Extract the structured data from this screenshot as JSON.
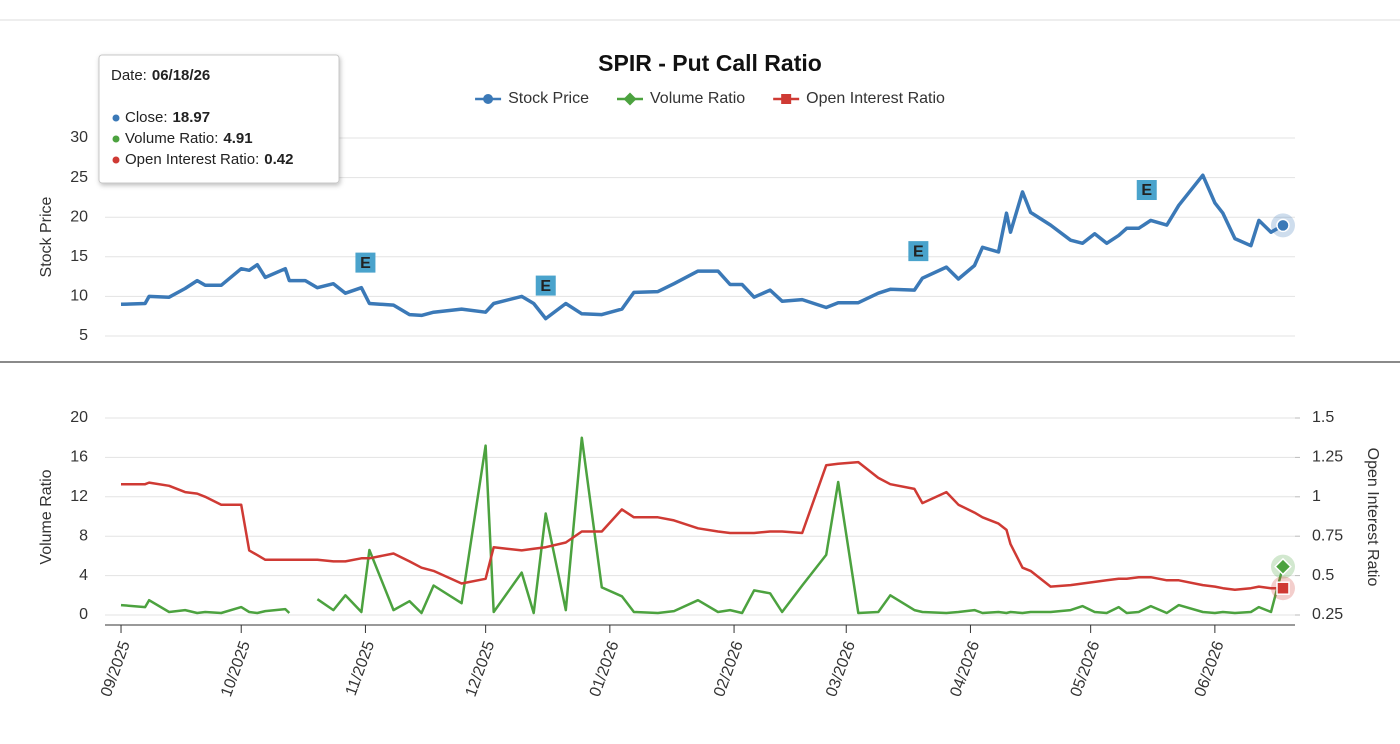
{
  "chart_data": {
    "type": "line",
    "title": "SPIR - Put Call Ratio",
    "ylabel": "Stock Price",
    "y2label": "Volume Ratio",
    "y3label": "Open Interest Ratio",
    "xlim": [
      "08/28/25",
      "06/21/26"
    ],
    "xticks": [
      {
        "value": "09/01/25",
        "label": "09/2025"
      },
      {
        "value": "10/01/25",
        "label": "10/2025"
      },
      {
        "value": "11/01/25",
        "label": "11/2025"
      },
      {
        "value": "12/01/25",
        "label": "12/2025"
      },
      {
        "value": "01/01/26",
        "label": "01/2026"
      },
      {
        "value": "02/01/26",
        "label": "02/2026"
      },
      {
        "value": "03/01/26",
        "label": "03/2026"
      },
      {
        "value": "04/01/26",
        "label": "04/2026"
      },
      {
        "value": "05/01/26",
        "label": "05/2026"
      },
      {
        "value": "06/01/26",
        "label": "06/2026"
      }
    ],
    "ylim": [
      5,
      30
    ],
    "yticks": [
      5,
      10,
      15,
      20,
      25,
      30
    ],
    "y2lim": [
      0,
      20
    ],
    "y2ticks": [
      0,
      4,
      8,
      12,
      16,
      20
    ],
    "y3lim": [
      0.25,
      1.5
    ],
    "y3ticks": [
      0.25,
      0.5,
      0.75,
      1,
      1.25,
      1.5
    ],
    "grid": true,
    "x": [
      "09/01/25",
      "09/07/25",
      "09/08/25",
      "09/13/25",
      "09/17/25",
      "09/20/25",
      "09/22/25",
      "09/26/25",
      "10/01/25",
      "10/03/25",
      "10/05/25",
      "10/07/25",
      "10/12/25",
      "10/13/25",
      "10/17/25",
      "10/20/25",
      "10/24/25",
      "10/27/25",
      "10/31/25",
      "11/02/25",
      "11/08/25",
      "11/12/25",
      "11/15/25",
      "11/18/25",
      "11/25/25",
      "12/01/25",
      "12/03/25",
      "12/10/25",
      "12/13/25",
      "12/16/25",
      "12/21/25",
      "12/25/25",
      "12/30/25",
      "01/04/26",
      "01/07/26",
      "01/13/26",
      "01/17/26",
      "01/23/26",
      "01/28/26",
      "01/31/26",
      "02/03/26",
      "02/06/26",
      "02/10/26",
      "02/13/26",
      "02/18/26",
      "02/24/26",
      "02/27/26",
      "03/04/26",
      "03/09/26",
      "03/12/26",
      "03/18/26",
      "03/20/26",
      "03/26/26",
      "03/29/26",
      "04/02/26",
      "04/04/26",
      "04/08/26",
      "04/10/26",
      "04/11/26",
      "04/14/26",
      "04/16/26",
      "04/21/26",
      "04/26/26",
      "04/29/26",
      "05/02/26",
      "05/05/26",
      "05/08/26",
      "05/10/26",
      "05/13/26",
      "05/16/26",
      "05/20/26",
      "05/23/26",
      "05/29/26",
      "06/01/26",
      "06/03/26",
      "06/06/26",
      "06/10/26",
      "06/12/26",
      "06/15/26",
      "06/18/26"
    ],
    "series": [
      {
        "name": "Stock Price",
        "color": "#3b79b7",
        "marker": "circle",
        "axis": "y",
        "values": [
          9.0,
          9.1,
          10.0,
          9.9,
          11.0,
          12.0,
          11.4,
          11.4,
          13.5,
          13.3,
          14.0,
          12.4,
          13.5,
          12.0,
          12.0,
          11.1,
          11.6,
          10.4,
          11.1,
          9.1,
          8.9,
          7.7,
          7.6,
          8.0,
          8.4,
          8.0,
          9.1,
          10.0,
          9.1,
          7.2,
          9.1,
          7.8,
          7.7,
          8.4,
          10.5,
          10.6,
          11.6,
          13.2,
          13.2,
          11.5,
          11.5,
          9.9,
          10.8,
          9.4,
          9.6,
          8.6,
          9.2,
          9.2,
          10.4,
          10.9,
          10.8,
          12.3,
          13.7,
          12.2,
          13.9,
          16.2,
          15.6,
          20.5,
          18.1,
          23.2,
          20.6,
          19.0,
          17.1,
          16.7,
          17.9,
          16.7,
          17.7,
          18.6,
          18.6,
          19.6,
          19.0,
          21.5,
          25.3,
          21.8,
          20.5,
          17.3,
          16.4,
          19.6,
          18.1,
          18.97
        ]
      },
      {
        "name": "Volume Ratio",
        "color": "#4ca23f",
        "marker": "diamond",
        "axis": "y2",
        "values": [
          1.0,
          0.8,
          1.5,
          0.3,
          0.5,
          0.2,
          0.3,
          0.2,
          0.8,
          0.3,
          0.2,
          0.4,
          0.6,
          0.2,
          null,
          1.6,
          0.5,
          2.0,
          0.3,
          6.6,
          0.5,
          1.4,
          0.2,
          3.0,
          1.2,
          17.2,
          0.3,
          4.3,
          0.2,
          10.3,
          0.5,
          18.0,
          2.8,
          1.9,
          0.3,
          0.2,
          0.4,
          1.5,
          0.3,
          0.5,
          0.2,
          2.5,
          2.2,
          0.3,
          3.0,
          6.1,
          13.5,
          0.2,
          0.3,
          2.0,
          0.5,
          0.3,
          0.2,
          0.3,
          0.5,
          0.2,
          0.3,
          0.2,
          0.3,
          0.2,
          0.3,
          0.3,
          0.5,
          0.9,
          0.3,
          0.2,
          0.8,
          0.2,
          0.3,
          0.9,
          0.2,
          1.0,
          0.3,
          0.2,
          0.3,
          0.2,
          0.3,
          0.8,
          0.3,
          4.91
        ]
      },
      {
        "name": "Open Interest Ratio",
        "color": "#cf3a34",
        "marker": "square",
        "axis": "y3",
        "values": [
          1.08,
          1.08,
          1.09,
          1.07,
          1.03,
          1.02,
          1.0,
          0.95,
          0.95,
          0.66,
          0.63,
          0.6,
          0.6,
          0.6,
          0.6,
          0.6,
          0.59,
          0.59,
          0.61,
          0.61,
          0.64,
          0.59,
          0.55,
          0.53,
          0.45,
          0.48,
          0.68,
          0.66,
          0.67,
          0.68,
          0.71,
          0.78,
          0.78,
          0.92,
          0.87,
          0.87,
          0.85,
          0.8,
          0.78,
          0.77,
          0.77,
          0.77,
          0.78,
          0.78,
          0.77,
          1.2,
          1.21,
          1.22,
          1.12,
          1.08,
          1.05,
          0.96,
          1.03,
          0.95,
          0.9,
          0.87,
          0.83,
          0.79,
          0.7,
          0.55,
          0.53,
          0.43,
          0.44,
          0.45,
          0.46,
          0.47,
          0.48,
          0.48,
          0.49,
          0.49,
          0.47,
          0.47,
          0.44,
          0.43,
          0.42,
          0.41,
          0.42,
          0.43,
          0.42,
          0.42
        ]
      }
    ],
    "earnings": [
      {
        "x": "11/01/25",
        "label": "E"
      },
      {
        "x": "12/16/25",
        "label": "E"
      },
      {
        "x": "03/19/26",
        "label": "E"
      },
      {
        "x": "05/15/26",
        "label": "E"
      }
    ],
    "tooltip": {
      "date_label": "Date:",
      "labels": [
        "Close:",
        "Volume Ratio:",
        "Open Interest Ratio:"
      ]
    }
  }
}
